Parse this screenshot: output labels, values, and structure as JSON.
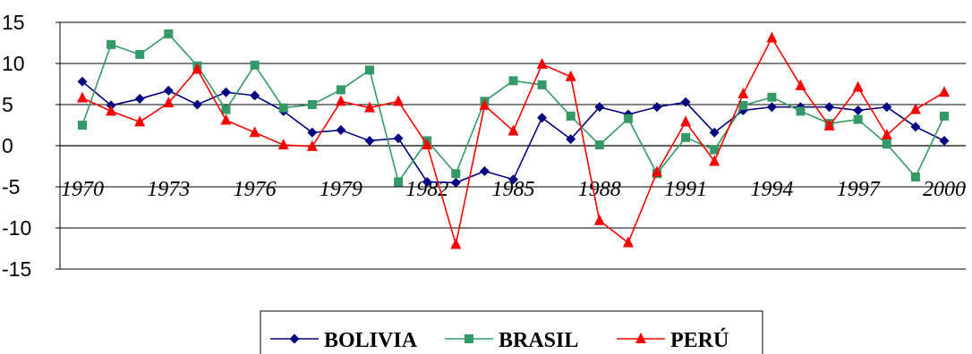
{
  "chart_data": {
    "type": "line",
    "title": "",
    "xlabel": "",
    "ylabel": "",
    "x": [
      1970,
      1971,
      1972,
      1973,
      1974,
      1975,
      1976,
      1977,
      1978,
      1979,
      1980,
      1981,
      1982,
      1983,
      1984,
      1985,
      1986,
      1987,
      1988,
      1989,
      1990,
      1991,
      1992,
      1993,
      1994,
      1995,
      1996,
      1997,
      1998,
      1999,
      2000
    ],
    "x_tick_labels": [
      "1970",
      "1973",
      "1976",
      "1979",
      "1982",
      "1985",
      "1988",
      "1991",
      "1994",
      "1997",
      "2000"
    ],
    "y_tick_labels": [
      "15",
      "10",
      "5",
      "0",
      "-5",
      "-10",
      "-15"
    ],
    "ylim": [
      -15,
      15
    ],
    "y_gridlines": true,
    "legend_position": "bottom",
    "series": [
      {
        "name": "BOLIVIA",
        "color": "#000080",
        "marker": "diamond",
        "values": [
          7.8,
          4.9,
          5.7,
          6.7,
          5.0,
          6.5,
          6.1,
          4.2,
          1.6,
          1.9,
          0.6,
          0.9,
          -4.4,
          -4.5,
          -3.1,
          -4.1,
          3.4,
          0.8,
          4.7,
          3.8,
          4.7,
          5.3,
          1.6,
          4.3,
          4.7,
          4.7,
          4.7,
          4.3,
          4.7,
          2.3,
          0.6
        ]
      },
      {
        "name": "BRASIL",
        "color": "#339966",
        "marker": "square",
        "values": [
          2.5,
          12.3,
          11.1,
          13.6,
          9.7,
          4.4,
          9.8,
          4.6,
          5.0,
          6.8,
          9.2,
          -4.4,
          0.6,
          -3.4,
          5.4,
          7.9,
          7.4,
          3.6,
          0.1,
          3.3,
          -3.4,
          1.0,
          -0.5,
          4.9,
          5.9,
          4.2,
          2.7,
          3.2,
          0.2,
          -3.8,
          3.6
        ]
      },
      {
        "name": "PERÚ",
        "color": "#ff0000",
        "marker": "triangle",
        "values": [
          5.8,
          4.2,
          2.9,
          5.2,
          9.3,
          3.1,
          1.6,
          0.1,
          -0.1,
          5.4,
          4.6,
          5.4,
          0.1,
          -12.0,
          4.9,
          1.8,
          9.9,
          8.4,
          -9.1,
          -11.8,
          -3.2,
          2.9,
          -1.9,
          6.3,
          13.1,
          7.3,
          2.4,
          7.1,
          1.3,
          4.4,
          6.5
        ]
      }
    ]
  }
}
